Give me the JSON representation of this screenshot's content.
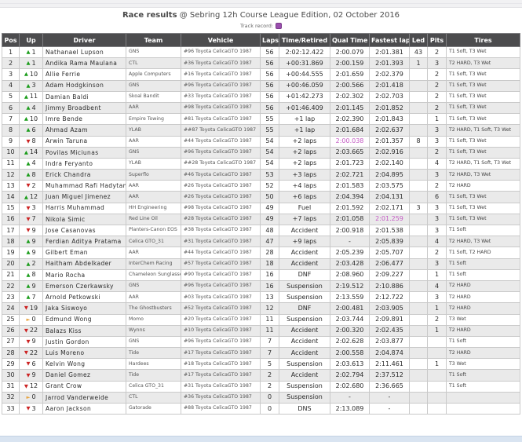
{
  "page": {
    "title_bold": "Race results",
    "title_rest": " @ Sebring 12h Course League Edition, 02 October 2016",
    "legend_label": "Track record:"
  },
  "colors": {
    "header_bg": "#4c4c4e",
    "record": "#c45ac4",
    "record_swatch": "#9a4fae",
    "up": "#1a9c1a",
    "down": "#cc2222",
    "same": "#e8a33d"
  },
  "icons": {
    "up": "▲",
    "down": "▼",
    "same": "►"
  },
  "table": {
    "columns": [
      "Pos",
      "Up",
      "Driver",
      "Team",
      "Vehicle",
      "Laps",
      "Time/Retired",
      "Qual Time",
      "Fastest lap",
      "Led",
      "Pits",
      "Tires"
    ],
    "rows": [
      {
        "pos": "1",
        "dir": "up",
        "up": "1",
        "driver": "Nathanael Lupson",
        "team": "GNS",
        "vehicle": "#96 Toyota CelicaGTO 1987",
        "laps": "56",
        "time": "2:02:12.422",
        "qual": "2:00.079",
        "fastest": "2:01.381",
        "led": "43",
        "pits": "2",
        "tires": "T1 Soft, T3 Wet",
        "record": ""
      },
      {
        "pos": "2",
        "dir": "up",
        "up": "1",
        "driver": "Andika Rama Maulana",
        "team": "CTL",
        "vehicle": "#36 Toyota CelicaGTO 1987",
        "laps": "56",
        "time": "+00:31.869",
        "qual": "2:00.159",
        "fastest": "2:01.393",
        "led": "1",
        "pits": "3",
        "tires": "T2 HARD, T3 Wet",
        "record": ""
      },
      {
        "pos": "3",
        "dir": "up",
        "up": "10",
        "driver": "Allie Ferrie",
        "team": "Apple Computers",
        "vehicle": "#16 Toyota CelicaGTO 1987",
        "laps": "56",
        "time": "+00:44.555",
        "qual": "2:01.659",
        "fastest": "2:02.379",
        "led": "",
        "pits": "2",
        "tires": "T1 Soft, T3 Wet",
        "record": ""
      },
      {
        "pos": "4",
        "dir": "up",
        "up": "3",
        "driver": "Adam Hodgkinson",
        "team": "GNS",
        "vehicle": "#96 Toyota CelicaGTO 1987",
        "laps": "56",
        "time": "+00:46.059",
        "qual": "2:00.566",
        "fastest": "2:01.418",
        "led": "",
        "pits": "2",
        "tires": "T1 Soft, T3 Wet",
        "record": ""
      },
      {
        "pos": "5",
        "dir": "up",
        "up": "11",
        "driver": "Damian Baldi",
        "team": "Skoal Bandit",
        "vehicle": "#33 Toyota CelicaGTO 1987",
        "laps": "56",
        "time": "+01:42.273",
        "qual": "2:02.302",
        "fastest": "2:02.703",
        "led": "",
        "pits": "2",
        "tires": "T1 Soft, T3 Wet",
        "record": ""
      },
      {
        "pos": "6",
        "dir": "up",
        "up": "4",
        "driver": "Jimmy Broadbent",
        "team": "AAR",
        "vehicle": "#98 Toyota CelicaGTO 1987",
        "laps": "56",
        "time": "+01:46.409",
        "qual": "2:01.145",
        "fastest": "2:01.852",
        "led": "",
        "pits": "2",
        "tires": "T1 Soft, T3 Wet",
        "record": ""
      },
      {
        "pos": "7",
        "dir": "up",
        "up": "10",
        "driver": "Imre Bende",
        "team": "Empire Towing",
        "vehicle": "#81 Toyota CelicaGTO 1987",
        "laps": "55",
        "time": "+1 lap",
        "qual": "2:02.390",
        "fastest": "2:01.843",
        "led": "",
        "pits": "1",
        "tires": "T1 Soft, T3 Wet",
        "record": ""
      },
      {
        "pos": "8",
        "dir": "up",
        "up": "6",
        "driver": "Ahmad Azam",
        "team": "YLAB",
        "vehicle": "##87 Toyota CelicaGTO 1987",
        "laps": "55",
        "time": "+1 lap",
        "qual": "2:01.684",
        "fastest": "2:02.637",
        "led": "",
        "pits": "3",
        "tires": "T2 HARD, T1 Soft, T3 Wet",
        "record": ""
      },
      {
        "pos": "9",
        "dir": "down",
        "up": "8",
        "driver": "Arwin Taruna",
        "team": "AAR",
        "vehicle": "#44 Toyota CelicaGTO 1987",
        "laps": "54",
        "time": "+2 laps",
        "qual": "2:00.038",
        "fastest": "2:01.357",
        "led": "8",
        "pits": "3",
        "tires": "T1 Soft, T3 Wet",
        "record": "qual"
      },
      {
        "pos": "10",
        "dir": "up",
        "up": "14",
        "driver": "Povilas Miciunas",
        "team": "GNS",
        "vehicle": "#96 Toyota CelicaGTO 1987",
        "laps": "54",
        "time": "+2 laps",
        "qual": "2:03.665",
        "fastest": "2:02.916",
        "led": "",
        "pits": "2",
        "tires": "T1 Soft, T3 Wet",
        "record": ""
      },
      {
        "pos": "11",
        "dir": "up",
        "up": "4",
        "driver": "Indra Feryanto",
        "team": "YLAB",
        "vehicle": "##28 Toyota CelicaGTO 1987",
        "laps": "54",
        "time": "+2 laps",
        "qual": "2:01.723",
        "fastest": "2:02.140",
        "led": "",
        "pits": "4",
        "tires": "T2 HARD, T1 Soft, T3 Wet",
        "record": ""
      },
      {
        "pos": "12",
        "dir": "up",
        "up": "8",
        "driver": "Erick Chandra",
        "team": "Superflo",
        "vehicle": "#46 Toyota CelicaGTO 1987",
        "laps": "53",
        "time": "+3 laps",
        "qual": "2:02.721",
        "fastest": "2:04.895",
        "led": "",
        "pits": "3",
        "tires": "T2 HARD, T3 Wet",
        "record": ""
      },
      {
        "pos": "13",
        "dir": "down",
        "up": "2",
        "driver": "Muhammad Rafi Hadytama",
        "team": "AAR",
        "vehicle": "#26 Toyota CelicaGTO 1987",
        "laps": "52",
        "time": "+4 laps",
        "qual": "2:01.583",
        "fastest": "2:03.575",
        "led": "",
        "pits": "2",
        "tires": "T2 HARD",
        "record": ""
      },
      {
        "pos": "14",
        "dir": "up",
        "up": "12",
        "driver": "Juan Miguel Jimenez",
        "team": "AAR",
        "vehicle": "#26 Toyota CelicaGTO 1987",
        "laps": "50",
        "time": "+6 laps",
        "qual": "2:04.394",
        "fastest": "2:04.131",
        "led": "",
        "pits": "6",
        "tires": "T1 Soft, T3 Wet",
        "record": ""
      },
      {
        "pos": "15",
        "dir": "down",
        "up": "3",
        "driver": "Harris Muhammad",
        "team": "HH Engineering",
        "vehicle": "#98 Toyota CelicaGTO 1987",
        "laps": "49",
        "time": "Fuel",
        "qual": "2:01.592",
        "fastest": "2:02.171",
        "led": "3",
        "pits": "3",
        "tires": "T1 Soft, T3 Wet",
        "record": ""
      },
      {
        "pos": "16",
        "dir": "down",
        "up": "7",
        "driver": "Nikola Simic",
        "team": "Red Line Oil",
        "vehicle": "#28 Toyota CelicaGTO 1987",
        "laps": "49",
        "time": "+7 laps",
        "qual": "2:01.058",
        "fastest": "2:01.259",
        "led": "",
        "pits": "3",
        "tires": "T1 Soft, T3 Wet",
        "record": "fastest"
      },
      {
        "pos": "17",
        "dir": "down",
        "up": "9",
        "driver": "Jose Casanovas",
        "team": "Planters-Canon EOS",
        "vehicle": "#38 Toyota CelicaGTO 1987",
        "laps": "48",
        "time": "Accident",
        "qual": "2:00.918",
        "fastest": "2:01.538",
        "led": "",
        "pits": "3",
        "tires": "T1 Soft",
        "record": ""
      },
      {
        "pos": "18",
        "dir": "up",
        "up": "9",
        "driver": "Ferdian Aditya Pratama",
        "team": "Celica GTO_31",
        "vehicle": "#31 Toyota CelicaGTO 1987",
        "laps": "47",
        "time": "+9 laps",
        "qual": "-",
        "fastest": "2:05.839",
        "led": "",
        "pits": "4",
        "tires": "T2 HARD, T3 Wet",
        "record": ""
      },
      {
        "pos": "19",
        "dir": "up",
        "up": "9",
        "driver": "Gilbert Eman",
        "team": "AAR",
        "vehicle": "#44 Toyota CelicaGTO 1987",
        "laps": "28",
        "time": "Accident",
        "qual": "2:05.239",
        "fastest": "2:05.707",
        "led": "",
        "pits": "2",
        "tires": "T1 Soft, T2 HARD",
        "record": ""
      },
      {
        "pos": "20",
        "dir": "up",
        "up": "2",
        "driver": "Haitham Abdelkader",
        "team": "InterChem Racing",
        "vehicle": "#57 Toyota CelicaGTO 1987",
        "laps": "18",
        "time": "Accident",
        "qual": "2:03.428",
        "fastest": "2:06.477",
        "led": "",
        "pits": "3",
        "tires": "T1 Soft",
        "record": ""
      },
      {
        "pos": "21",
        "dir": "up",
        "up": "8",
        "driver": "Mario Rocha",
        "team": "Chameleon Sunglasses",
        "vehicle": "#90 Toyota CelicaGTO 1987",
        "laps": "16",
        "time": "DNF",
        "qual": "2:08.960",
        "fastest": "2:09.227",
        "led": "",
        "pits": "1",
        "tires": "T1 Soft",
        "record": ""
      },
      {
        "pos": "22",
        "dir": "up",
        "up": "9",
        "driver": "Emerson Czerkawsky",
        "team": "GNS",
        "vehicle": "#96 Toyota CelicaGTO 1987",
        "laps": "16",
        "time": "Suspension",
        "qual": "2:19.512",
        "fastest": "2:10.886",
        "led": "",
        "pits": "4",
        "tires": "T2 HARD",
        "record": ""
      },
      {
        "pos": "23",
        "dir": "up",
        "up": "7",
        "driver": "Arnold Petkowski",
        "team": "AAR",
        "vehicle": "#03 Toyota CelicaGTO 1987",
        "laps": "13",
        "time": "Suspension",
        "qual": "2:13.559",
        "fastest": "2:12.722",
        "led": "",
        "pits": "3",
        "tires": "T2 HARD",
        "record": ""
      },
      {
        "pos": "24",
        "dir": "down",
        "up": "19",
        "driver": "Jaka Siswoyo",
        "team": "The Ghostbusters",
        "vehicle": "#52 Toyota CelicaGTO 1987",
        "laps": "12",
        "time": "DNF",
        "qual": "2:00.481",
        "fastest": "2:03.905",
        "led": "",
        "pits": "1",
        "tires": "T2 HARD",
        "record": ""
      },
      {
        "pos": "25",
        "dir": "same",
        "up": "0",
        "driver": "Edmund Wong",
        "team": "Momo",
        "vehicle": "#20 Toyota CelicaGTO 1987",
        "laps": "11",
        "time": "Suspension",
        "qual": "2:03.744",
        "fastest": "2:09.891",
        "led": "",
        "pits": "2",
        "tires": "T3 Wet",
        "record": ""
      },
      {
        "pos": "26",
        "dir": "down",
        "up": "22",
        "driver": "Balazs Kiss",
        "team": "Wynns",
        "vehicle": "#10 Toyota CelicaGTO 1987",
        "laps": "11",
        "time": "Accident",
        "qual": "2:00.320",
        "fastest": "2:02.435",
        "led": "",
        "pits": "1",
        "tires": "T2 HARD",
        "record": ""
      },
      {
        "pos": "27",
        "dir": "down",
        "up": "9",
        "driver": "Justin Gordon",
        "team": "GNS",
        "vehicle": "#96 Toyota CelicaGTO 1987",
        "laps": "7",
        "time": "Accident",
        "qual": "2:02.628",
        "fastest": "2:03.877",
        "led": "",
        "pits": "",
        "tires": "T1 Soft",
        "record": ""
      },
      {
        "pos": "28",
        "dir": "down",
        "up": "22",
        "driver": "Luis Moreno",
        "team": "Tide",
        "vehicle": "#17 Toyota CelicaGTO 1987",
        "laps": "7",
        "time": "Accident",
        "qual": "2:00.558",
        "fastest": "2:04.874",
        "led": "",
        "pits": "",
        "tires": "T2 HARD",
        "record": ""
      },
      {
        "pos": "29",
        "dir": "down",
        "up": "6",
        "driver": "Kelvin Wong",
        "team": "Hardees",
        "vehicle": "#18 Toyota CelicaGTO 1987",
        "laps": "5",
        "time": "Suspension",
        "qual": "2:03.613",
        "fastest": "2:11.461",
        "led": "",
        "pits": "1",
        "tires": "T3 Wet",
        "record": ""
      },
      {
        "pos": "30",
        "dir": "down",
        "up": "9",
        "driver": "Daniel Gomez",
        "team": "Tide",
        "vehicle": "#17 Toyota CelicaGTO 1987",
        "laps": "2",
        "time": "Accident",
        "qual": "2:02.794",
        "fastest": "2:37.512",
        "led": "",
        "pits": "",
        "tires": "T1 Soft",
        "record": ""
      },
      {
        "pos": "31",
        "dir": "down",
        "up": "12",
        "driver": "Grant Crow",
        "team": "Celica GTO_31",
        "vehicle": "#31 Toyota CelicaGTO 1987",
        "laps": "2",
        "time": "Suspension",
        "qual": "2:02.680",
        "fastest": "2:36.665",
        "led": "",
        "pits": "",
        "tires": "T1 Soft",
        "record": ""
      },
      {
        "pos": "32",
        "dir": "same",
        "up": "0",
        "driver": "Jarrod Vanderweide",
        "team": "CTL",
        "vehicle": "#36 Toyota CelicaGTO 1987",
        "laps": "0",
        "time": "Suspension",
        "qual": "-",
        "fastest": "-",
        "led": "",
        "pits": "",
        "tires": "",
        "record": ""
      },
      {
        "pos": "33",
        "dir": "down",
        "up": "3",
        "driver": "Aaron Jackson",
        "team": "Gatorade",
        "vehicle": "#88 Toyota CelicaGTO 1987",
        "laps": "0",
        "time": "DNS",
        "qual": "2:13.089",
        "fastest": "-",
        "led": "",
        "pits": "",
        "tires": "",
        "record": ""
      }
    ]
  }
}
